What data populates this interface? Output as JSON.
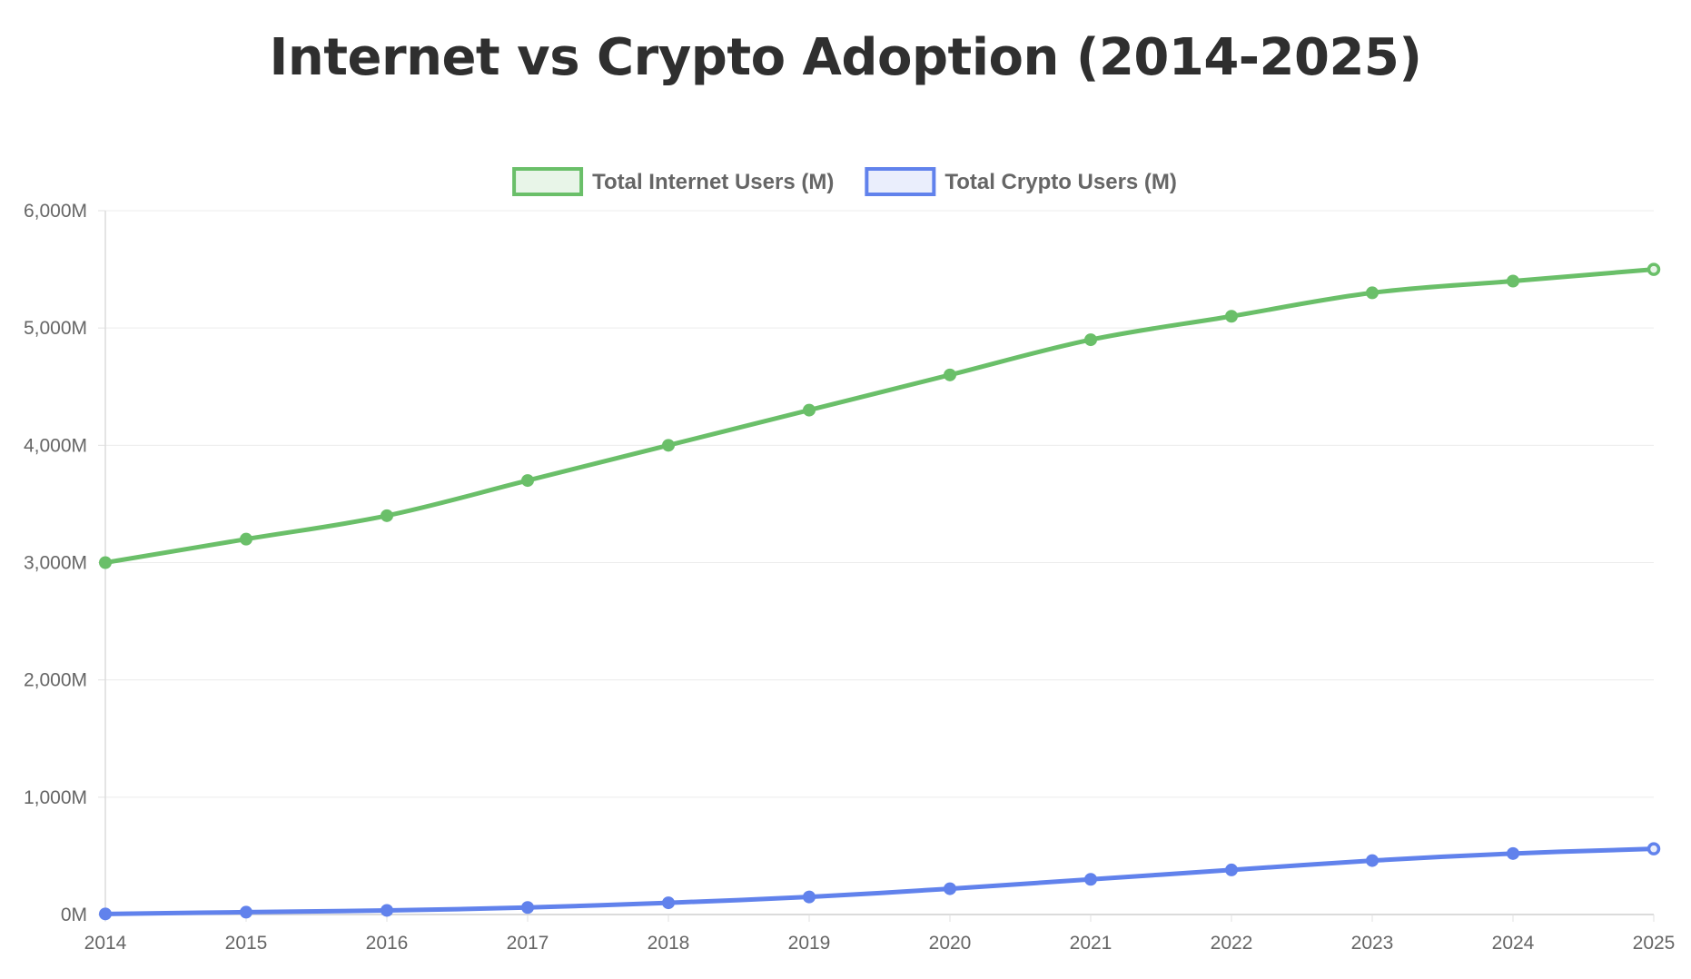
{
  "chart_data": {
    "type": "line",
    "title": "Internet vs Crypto Adoption (2014-2025)",
    "xlabel": "",
    "ylabel": "",
    "categories": [
      "2014",
      "2015",
      "2016",
      "2017",
      "2018",
      "2019",
      "2020",
      "2021",
      "2022",
      "2023",
      "2024",
      "2025"
    ],
    "ylim": [
      0,
      6000
    ],
    "yticks": [
      0,
      1000,
      2000,
      3000,
      4000,
      5000,
      6000
    ],
    "ytick_labels": [
      "0M",
      "1,000M",
      "2,000M",
      "3,000M",
      "4,000M",
      "5,000M",
      "6,000M"
    ],
    "grid": true,
    "legend_position": "top-center",
    "series": [
      {
        "name": "Total Internet Users (M)",
        "color": "#6abf69",
        "fill": "#e8f5e8",
        "values": [
          3000,
          3200,
          3400,
          3700,
          4000,
          4300,
          4600,
          4900,
          5100,
          5300,
          5400,
          5500
        ]
      },
      {
        "name": "Total Crypto Users (M)",
        "color": "#6182ec",
        "fill": "#eaeefc",
        "values": [
          5,
          20,
          35,
          60,
          100,
          150,
          220,
          300,
          380,
          460,
          520,
          560
        ]
      }
    ]
  }
}
